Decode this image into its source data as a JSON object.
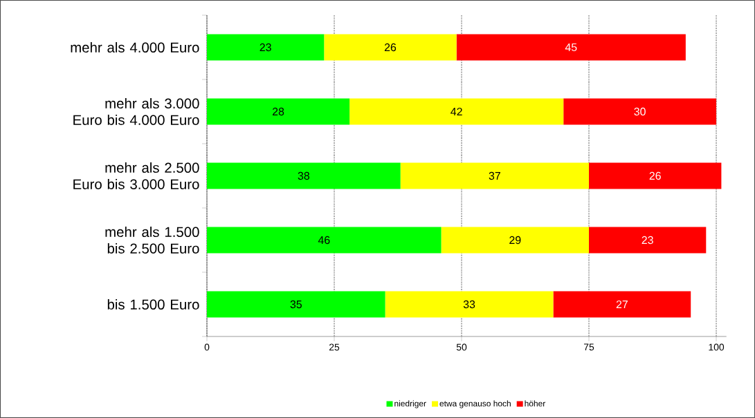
{
  "chart_data": {
    "type": "bar",
    "orientation": "horizontal",
    "stacked": true,
    "categories": [
      "mehr als 4.000 Euro",
      "mehr als 3.000 Euro bis 4.000 Euro",
      "mehr als 2.500 Euro bis 3.000 Euro",
      "mehr als 1.500 bis 2.500 Euro",
      "bis 1.500 Euro"
    ],
    "series": [
      {
        "name": "niedriger",
        "color": "#00ff00",
        "values": [
          23,
          28,
          38,
          46,
          35
        ]
      },
      {
        "name": "etwa genauso hoch",
        "color": "#ffff00",
        "values": [
          26,
          42,
          37,
          29,
          33
        ]
      },
      {
        "name": "höher",
        "color": "#ff0000",
        "values": [
          45,
          30,
          26,
          23,
          27
        ]
      }
    ],
    "xlim": [
      0,
      102
    ],
    "xticks": [
      0,
      25,
      50,
      75,
      100
    ],
    "grid": "x",
    "legend": "bottom",
    "data_labels": true
  }
}
